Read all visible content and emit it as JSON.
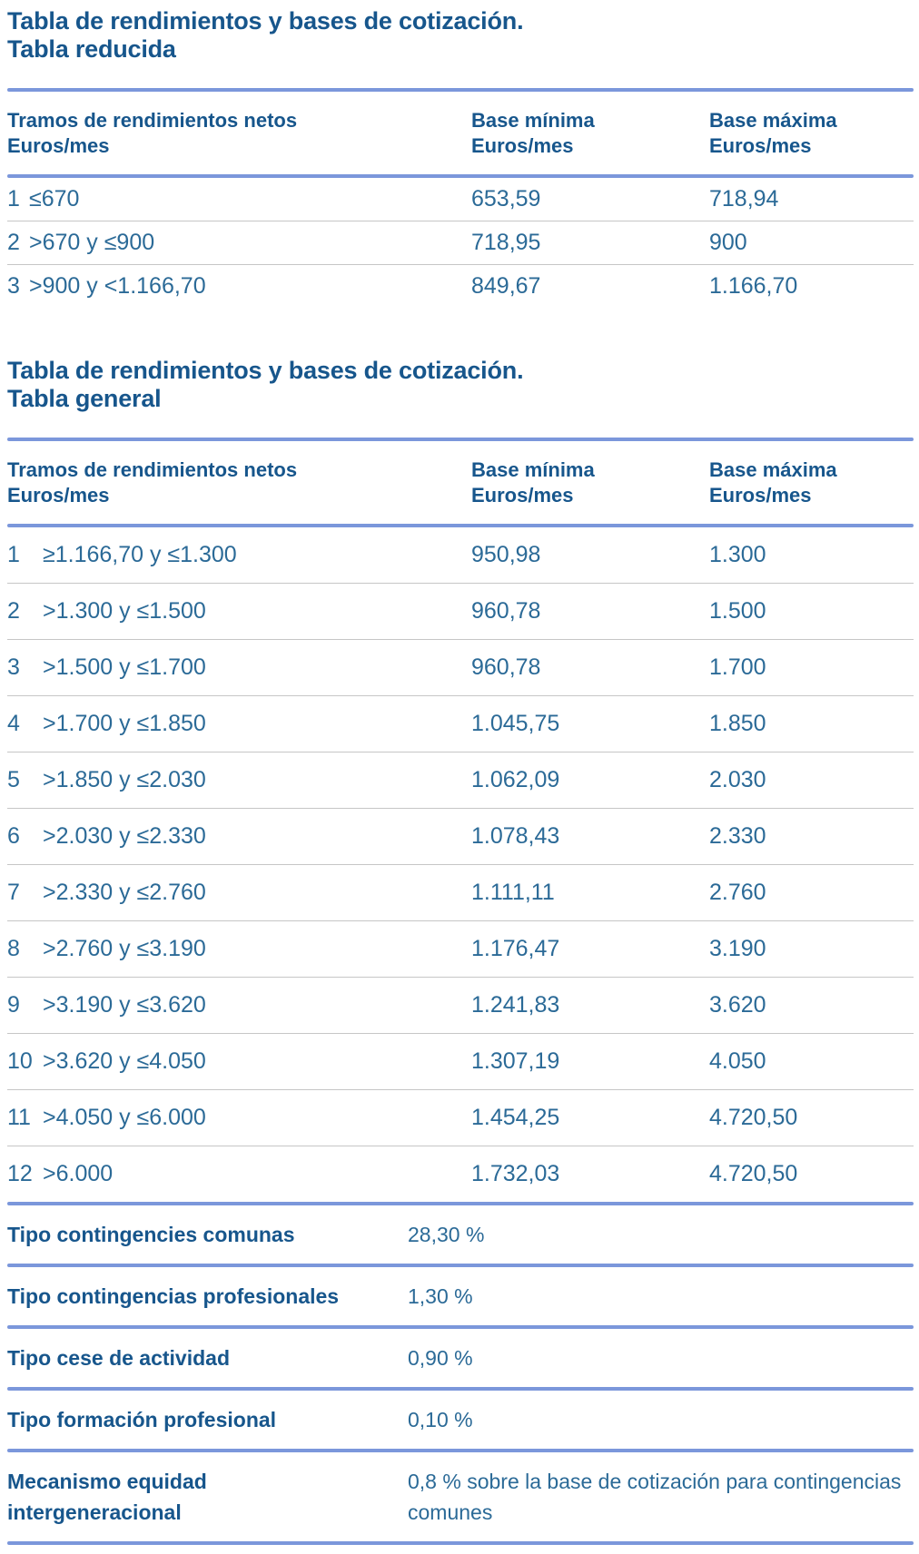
{
  "colors": {
    "ink": "#17568C",
    "body_text": "#2B6A97",
    "rule_blue": "#7B97DB",
    "separator_gray": "#C6C6C6",
    "background": "#FFFFFF"
  },
  "tables": [
    {
      "title": "Tabla de rendimientos y bases de cotización.",
      "subtitle": "Tabla reducida",
      "col1_header": "Tramos de rendimientos netos",
      "col1_sub": "Euros/mes",
      "col2_header": "Base mínima",
      "col2_sub": "Euros/mes",
      "col3_header": "Base máxima",
      "col3_sub": "Euros/mes",
      "rows": [
        {
          "num": "1",
          "tramo": "≤670",
          "base_min": "653,59",
          "base_max": "718,94"
        },
        {
          "num": "2",
          "tramo": ">670 y ≤900",
          "base_min": "718,95",
          "base_max": "900"
        },
        {
          "num": "3",
          "tramo": ">900 y <1.166,70",
          "base_min": "849,67",
          "base_max": "1.166,70"
        }
      ]
    },
    {
      "title": "Tabla de rendimientos y bases de cotización.",
      "subtitle": "Tabla general",
      "col1_header": "Tramos de rendimientos netos",
      "col1_sub": "Euros/mes",
      "col2_header": "Base mínima",
      "col2_sub": "Euros/mes",
      "col3_header": "Base máxima",
      "col3_sub": "Euros/mes",
      "rows": [
        {
          "num": "1",
          "tramo": "≥1.166,70 y ≤1.300",
          "base_min": "950,98",
          "base_max": "1.300"
        },
        {
          "num": "2",
          "tramo": ">1.300 y ≤1.500",
          "base_min": "960,78",
          "base_max": "1.500"
        },
        {
          "num": "3",
          "tramo": ">1.500 y ≤1.700",
          "base_min": "960,78",
          "base_max": "1.700"
        },
        {
          "num": "4",
          "tramo": ">1.700 y ≤1.850",
          "base_min": "1.045,75",
          "base_max": "1.850"
        },
        {
          "num": "5",
          "tramo": ">1.850 y ≤2.030",
          "base_min": "1.062,09",
          "base_max": "2.030"
        },
        {
          "num": "6",
          "tramo": ">2.030 y ≤2.330",
          "base_min": "1.078,43",
          "base_max": "2.330"
        },
        {
          "num": "7",
          "tramo": ">2.330 y ≤2.760",
          "base_min": "1.111,11",
          "base_max": "2.760"
        },
        {
          "num": "8",
          "tramo": ">2.760 y ≤3.190",
          "base_min": "1.176,47",
          "base_max": "3.190"
        },
        {
          "num": "9",
          "tramo": ">3.190 y ≤3.620",
          "base_min": "1.241,83",
          "base_max": "3.620"
        },
        {
          "num": "10",
          "tramo": ">3.620 y ≤4.050",
          "base_min": "1.307,19",
          "base_max": "4.050"
        },
        {
          "num": "11",
          "tramo": ">4.050 y ≤6.000",
          "base_min": "1.454,25",
          "base_max": "4.720,50"
        },
        {
          "num": "12",
          "tramo": ">6.000",
          "base_min": "1.732,03",
          "base_max": "4.720,50"
        }
      ]
    }
  ],
  "rates": [
    {
      "label": "Tipo contingencies comunas",
      "label2": "",
      "value": "28,30 %"
    },
    {
      "label": "Tipo contingencias profesionales",
      "label2": "",
      "value": "1,30 %"
    },
    {
      "label": "Tipo cese de actividad",
      "label2": "",
      "value": "0,90 %"
    },
    {
      "label": "Tipo formación profesional",
      "label2": "",
      "value": "0,10 %"
    },
    {
      "label": "Mecanismo equidad",
      "label2": "intergeneracional",
      "value": "0,8 % sobre la base de cotización para contingencias comunes"
    }
  ]
}
